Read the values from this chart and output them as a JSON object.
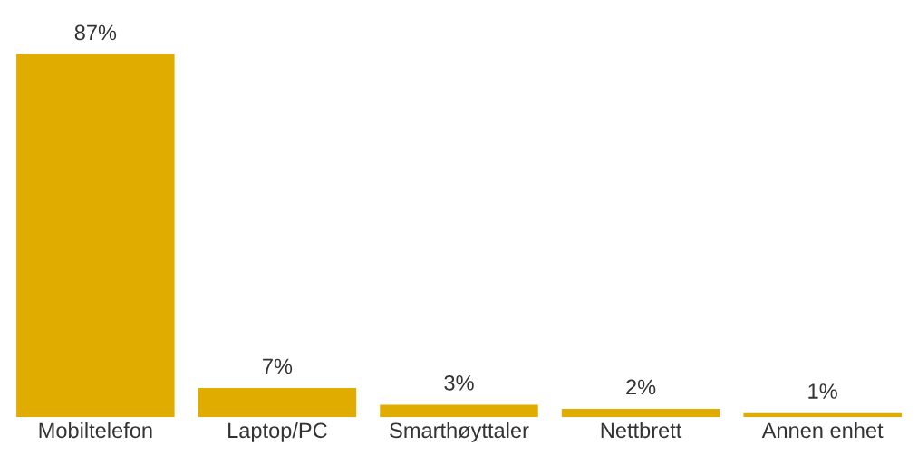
{
  "chart_data": {
    "type": "bar",
    "categories": [
      "Mobiltelefon",
      "Laptop/PC",
      "Smarthøyttaler",
      "Nettbrett",
      "Annen enhet"
    ],
    "values": [
      87,
      7,
      3,
      2,
      1
    ],
    "value_labels": [
      "87%",
      "7%",
      "3%",
      "2%",
      "1%"
    ],
    "color": "#e0ac00",
    "grid": false,
    "legend": false
  }
}
